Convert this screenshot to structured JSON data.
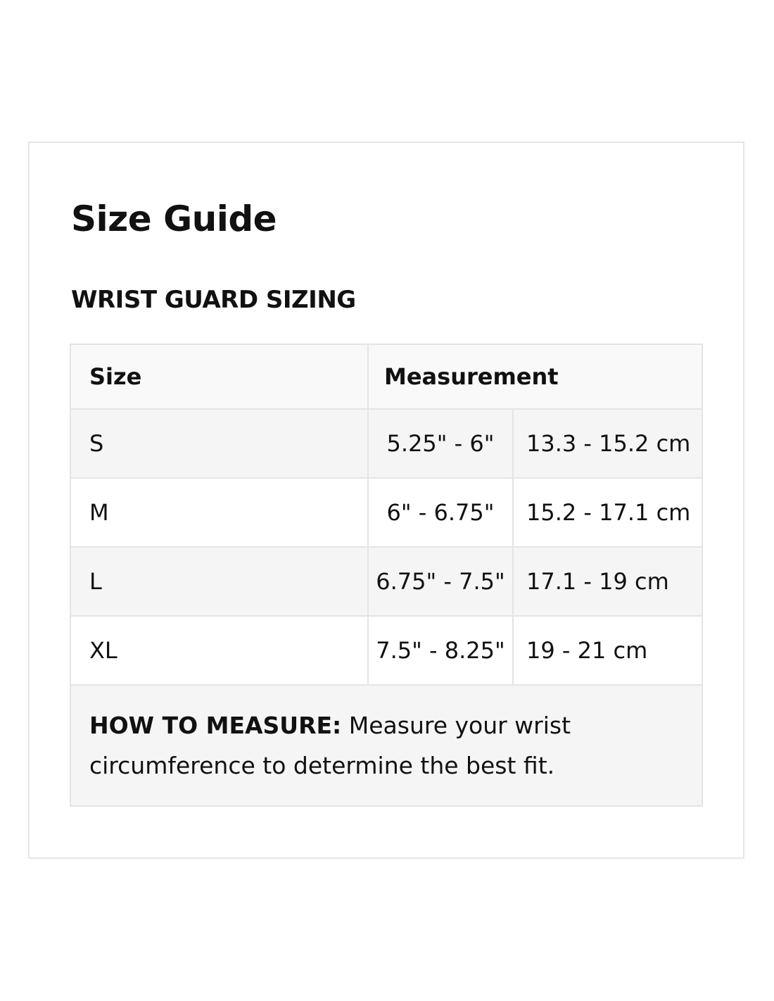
{
  "title": "Size Guide",
  "subtitle": "WRIST GUARD SIZING",
  "table": {
    "headers": {
      "size": "Size",
      "measurement": "Measurement"
    },
    "rows": [
      {
        "size": "S",
        "inches": "5.25\" - 6\"",
        "cm": "13.3 - 15.2 cm"
      },
      {
        "size": "M",
        "inches": "6\" - 6.75\"",
        "cm": "15.2 - 17.1 cm"
      },
      {
        "size": "L",
        "inches": "6.75\" - 7.5\"",
        "cm": "17.1 - 19 cm"
      },
      {
        "size": "XL",
        "inches": "7.5\" - 8.25\"",
        "cm": "19 - 21 cm"
      }
    ]
  },
  "note": {
    "label": "HOW TO MEASURE:",
    "text": "Measure your wrist circumference to determine the best fit."
  }
}
